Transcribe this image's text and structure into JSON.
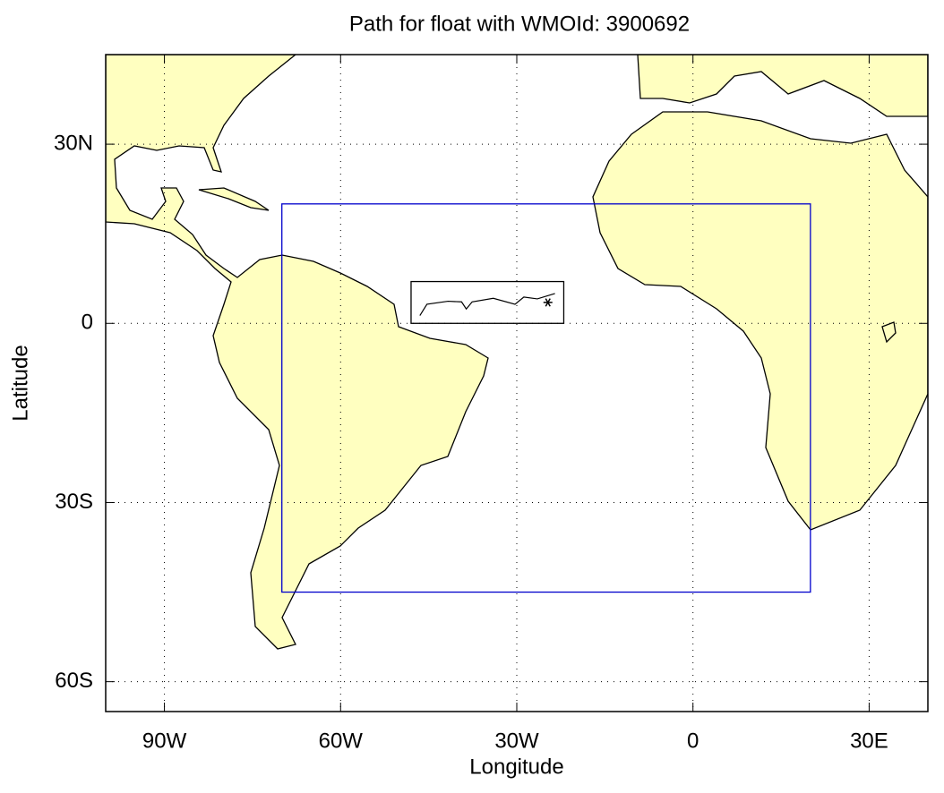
{
  "chart_data": {
    "type": "map",
    "title": "Path for float with WMOId: 3900692",
    "xlabel": "Longitude",
    "ylabel": "Latitude",
    "xlim": [
      -100,
      40
    ],
    "ylim": [
      -65,
      45
    ],
    "xticks": [
      {
        "value": -90,
        "label": "90W"
      },
      {
        "value": -60,
        "label": "60W"
      },
      {
        "value": -30,
        "label": "30W"
      },
      0,
      {
        "value": 30,
        "label": "30E"
      }
    ],
    "yticks": [
      {
        "value": -60,
        "label": "60S"
      },
      {
        "value": -30,
        "label": "30S"
      },
      0,
      {
        "value": 30,
        "label": "30N"
      }
    ],
    "grid": true,
    "boxes": [
      {
        "color": "#0000cc",
        "x": [
          -70,
          20
        ],
        "y": [
          -45,
          20
        ]
      },
      {
        "color": "#000000",
        "x": [
          -48,
          -22
        ],
        "y": [
          0,
          7
        ]
      }
    ],
    "series": [
      {
        "color": "#000000",
        "x": [
          -46.5,
          -45.3,
          -41.7,
          -39.4,
          -38.6,
          -37.6,
          -34.0,
          -30.3,
          -28.8,
          -26.5,
          -23.5,
          -24.7
        ],
        "values": [
          1.3,
          3.2,
          3.7,
          3.6,
          2.4,
          3.6,
          4.2,
          3.2,
          4.4,
          4.1,
          5.0,
          3.5
        ]
      }
    ]
  }
}
